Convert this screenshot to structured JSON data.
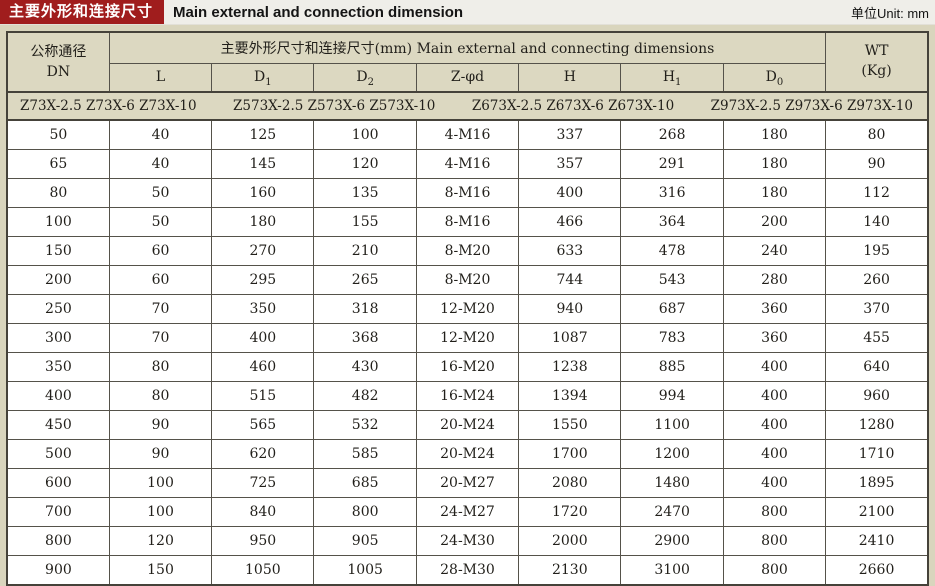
{
  "titlebar": {
    "title_cn": "主要外形和连接尺寸",
    "title_en": "Main external and connection dimension",
    "unit": "单位Unit: mm"
  },
  "colors": {
    "accent_red": "#a01d1d",
    "header_beige": "#dcd8c1",
    "page_beige": "#d9d5bd",
    "border_dark": "#45423a"
  },
  "table": {
    "dn_header": {
      "line1": "公称通径",
      "line2": "DN"
    },
    "span_header": "主要外形尺寸和连接尺寸(mm) Main external and connecting dimensions",
    "wt_header": {
      "line1": "WT",
      "line2": "(Kg)"
    },
    "columns": [
      [
        "L",
        ""
      ],
      [
        "D",
        "1"
      ],
      [
        "D",
        "2"
      ],
      [
        "Z-φd",
        ""
      ],
      [
        "H",
        ""
      ],
      [
        "H",
        "1"
      ],
      [
        "D",
        "0"
      ]
    ],
    "models": [
      "Z73X-2.5 Z73X-6 Z73X-10",
      "Z573X-2.5 Z573X-6 Z573X-10",
      "Z673X-2.5 Z673X-6 Z673X-10",
      "Z973X-2.5 Z973X-6 Z973X-10"
    ],
    "rows": [
      [
        "50",
        "40",
        "125",
        "100",
        "4-M16",
        "337",
        "268",
        "180",
        "80"
      ],
      [
        "65",
        "40",
        "145",
        "120",
        "4-M16",
        "357",
        "291",
        "180",
        "90"
      ],
      [
        "80",
        "50",
        "160",
        "135",
        "8-M16",
        "400",
        "316",
        "180",
        "112"
      ],
      [
        "100",
        "50",
        "180",
        "155",
        "8-M16",
        "466",
        "364",
        "200",
        "140"
      ],
      [
        "150",
        "60",
        "270",
        "210",
        "8-M20",
        "633",
        "478",
        "240",
        "195"
      ],
      [
        "200",
        "60",
        "295",
        "265",
        "8-M20",
        "744",
        "543",
        "280",
        "260"
      ],
      [
        "250",
        "70",
        "350",
        "318",
        "12-M20",
        "940",
        "687",
        "360",
        "370"
      ],
      [
        "300",
        "70",
        "400",
        "368",
        "12-M20",
        "1087",
        "783",
        "360",
        "455"
      ],
      [
        "350",
        "80",
        "460",
        "430",
        "16-M20",
        "1238",
        "885",
        "400",
        "640"
      ],
      [
        "400",
        "80",
        "515",
        "482",
        "16-M24",
        "1394",
        "994",
        "400",
        "960"
      ],
      [
        "450",
        "90",
        "565",
        "532",
        "20-M24",
        "1550",
        "1100",
        "400",
        "1280"
      ],
      [
        "500",
        "90",
        "620",
        "585",
        "20-M24",
        "1700",
        "1200",
        "400",
        "1710"
      ],
      [
        "600",
        "100",
        "725",
        "685",
        "20-M27",
        "2080",
        "1480",
        "400",
        "1895"
      ],
      [
        "700",
        "100",
        "840",
        "800",
        "24-M27",
        "1720",
        "2470",
        "800",
        "2100"
      ],
      [
        "800",
        "120",
        "950",
        "905",
        "24-M30",
        "2000",
        "2900",
        "800",
        "2410"
      ],
      [
        "900",
        "150",
        "1050",
        "1005",
        "28-M30",
        "2130",
        "3100",
        "800",
        "2660"
      ]
    ]
  }
}
